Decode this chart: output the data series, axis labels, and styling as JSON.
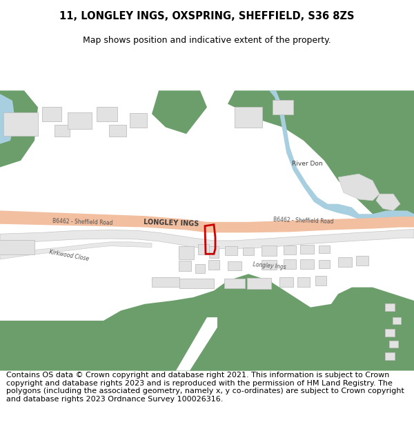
{
  "title_line1": "11, LONGLEY INGS, OXSPRING, SHEFFIELD, S36 8ZS",
  "title_line2": "Map shows position and indicative extent of the property.",
  "title_fontsize": 10.5,
  "subtitle_fontsize": 9,
  "footer_text": "Contains OS data © Crown copyright and database right 2021. This information is subject to Crown copyright and database rights 2023 and is reproduced with the permission of HM Land Registry. The polygons (including the associated geometry, namely x, y co-ordinates) are subject to Crown copyright and database rights 2023 Ordnance Survey 100026316.",
  "footer_fontsize": 8.0,
  "background_color": "#ffffff",
  "map_bg": "#f8f8f8",
  "green_color": "#6b9e6b",
  "road_color": "#f2bfa0",
  "water_color": "#a8cfe0",
  "building_color": "#e2e2e2",
  "building_edge": "#c0c0c0",
  "plot_outline_color": "#cc0000",
  "text_color": "#3a3a3a",
  "road_label_color": "#505050",
  "secondary_road_color": "#e8e8e8",
  "secondary_road_edge": "#c5c5c5"
}
